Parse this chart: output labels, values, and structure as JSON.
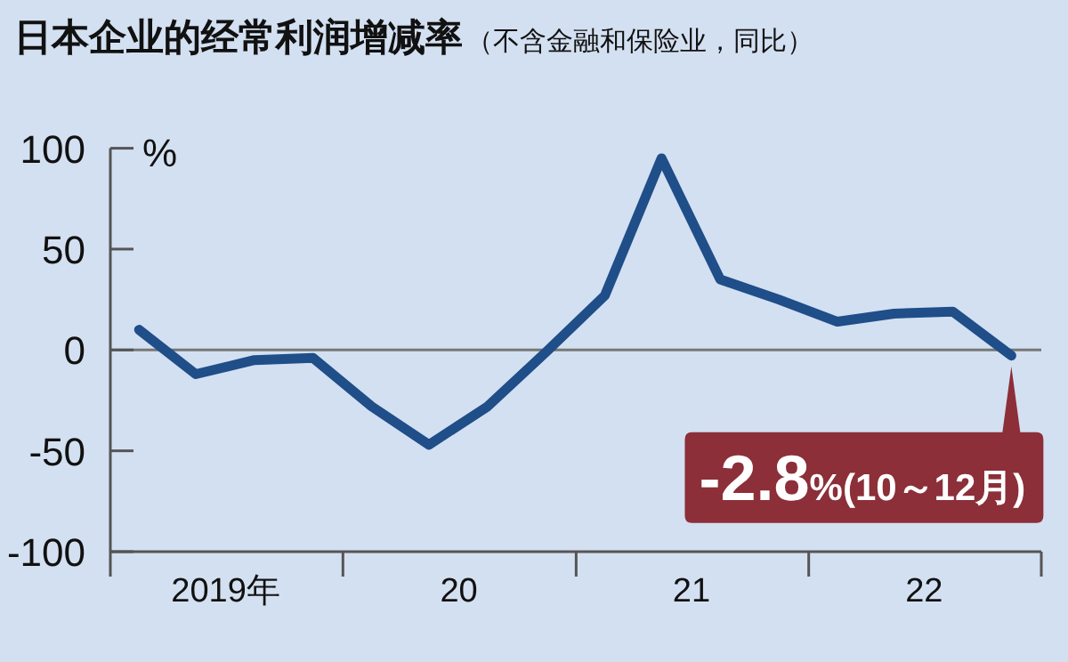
{
  "chart_data": {
    "type": "line",
    "title": "日本企业的经常利润增减率",
    "subtitle": "（不含金融和保险业，同比）",
    "ylabel": "%",
    "x": [
      "2019-02-15",
      "2019-05-15",
      "2019-08-15",
      "2019-11-15",
      "2020-02-15",
      "2020-05-15",
      "2020-08-15",
      "2020-11-15",
      "2021-02-15",
      "2021-05-15",
      "2021-08-15",
      "2021-11-15",
      "2022-02-15",
      "2022-05-15",
      "2022-08-15",
      "2022-11-15"
    ],
    "series": [
      {
        "color": "#1f4e89",
        "values": [
          10,
          -12,
          -5,
          -4,
          -28,
          -47,
          -28,
          -1,
          27,
          95,
          35,
          25,
          14,
          18,
          19,
          -2.8
        ]
      }
    ],
    "xlim": [
      "2019",
      "2023"
    ],
    "xticks": [
      {
        "value": "2019",
        "label": null
      },
      {
        "value": "2019-07",
        "label": "2019年"
      },
      {
        "value": "2020",
        "label": null
      },
      {
        "value": "2020-07",
        "label": "20"
      },
      {
        "value": "2021",
        "label": null
      },
      {
        "value": "2021-07",
        "label": "21"
      },
      {
        "value": "2022",
        "label": null
      },
      {
        "value": "2022-07",
        "label": "22"
      },
      {
        "value": "2023",
        "label": null
      }
    ],
    "ylim": [
      -100,
      100
    ],
    "yticks": [
      100,
      50,
      0,
      -50,
      -100
    ],
    "ref_lines": [
      {
        "axis": "y",
        "value": 0,
        "color": "#777777"
      }
    ],
    "annotations": [
      {
        "text": "-2.8%(10～12月)",
        "x": "2022-11-15",
        "y": -2.8
      }
    ],
    "marker": "none",
    "line_style": "solid",
    "grid": false
  }
}
